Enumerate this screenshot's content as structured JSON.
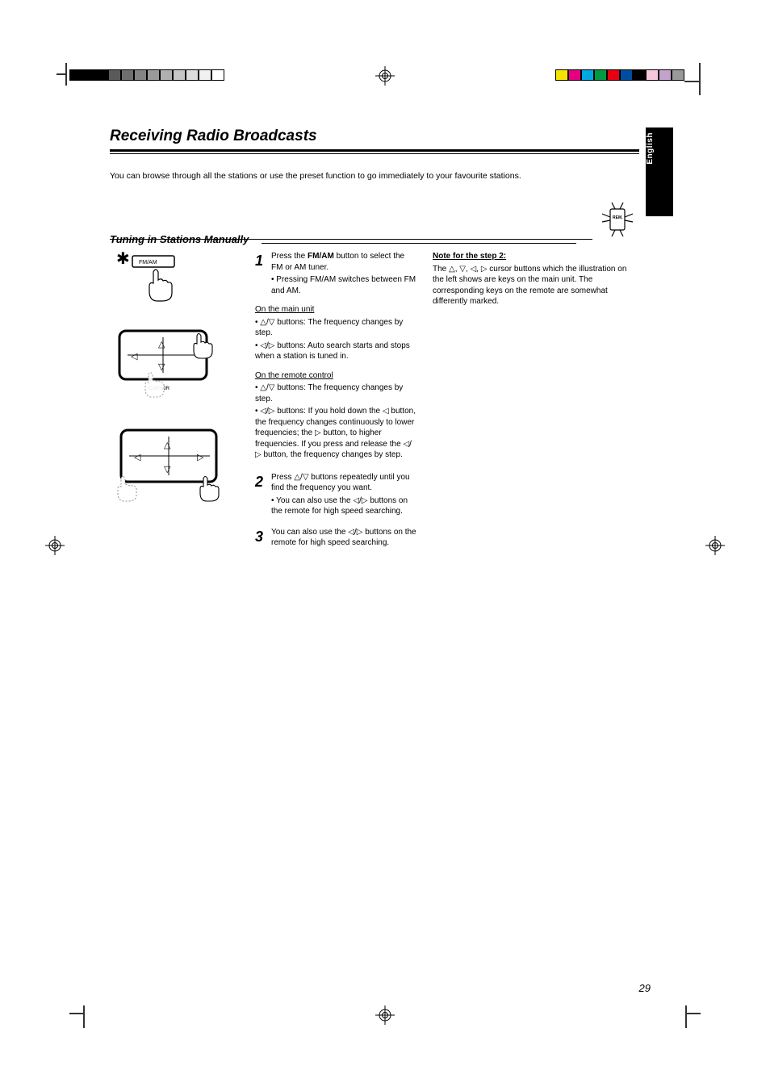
{
  "regmarks": {
    "left_colors": [
      "#000000",
      "#000000",
      "#000000",
      "#5a5a5a",
      "#6f6f6f",
      "#848484",
      "#9a9a9a",
      "#b0b0b0",
      "#c6c6c6",
      "#dcdcdc",
      "#f1f1f1",
      "#ffffff"
    ],
    "left_border": "#000000",
    "right_colors": [
      "#f5e400",
      "#e4007f",
      "#00a8e1",
      "#009944",
      "#e60012",
      "#004da0",
      "#000000",
      "#f6c6dc",
      "#c5a2cd",
      "#999999"
    ],
    "right_border": "#000000",
    "crosshair_color": "#000000",
    "corner_color": "#333333"
  },
  "page": {
    "chapter_title": "Receiving Radio Broadcasts",
    "side_tab_text": "English",
    "intro": "You can browse through all the stations or use the preset function to go immediately to your favourite stations.",
    "section_title": "Tuning in Stations Manually",
    "remote_label": "REM.",
    "page_number": "29"
  },
  "steps": [
    {
      "num": "1",
      "title_html": "Press the <b>FM/AM</b> button to select the FM or AM tuner.",
      "sub": "• Pressing FM/AM switches between FM and AM."
    },
    {
      "num": "2",
      "title_html": "Press <span class='tri'>△</span>/<span class='tri'>▽</span> buttons repeatedly until you find the frequency you want.",
      "sub": "• You can also use the <span class='tri'>◁</span>/<span class='tri'>▷</span> buttons on the remote for high speed searching."
    },
    {
      "num": "3",
      "title_html": "You can also use the <span class='tri'>◁</span>/<span class='tri'>▷</span> buttons on the remote for high speed searching."
    }
  ],
  "mid": {
    "on_main_unit_label": "On the main unit",
    "main_unit_1_html": "• <span class='tri'>△</span>/<span class='tri'>▽</span> buttons: The frequency changes by step.",
    "main_unit_2_html": "• <span class='tri'>◁</span>/<span class='tri'>▷</span> buttons: Auto search starts and stops when a station is tuned in.",
    "on_remote_label": "On the remote control",
    "remote_1_html": "• <span class='tri'>△</span>/<span class='tri'>▽</span> buttons: The frequency changes by step.",
    "remote_2_html": "• <span class='tri'>◁</span>/<span class='tri'>▷</span> buttons: If you hold down the <span class='tri'>◁</span> button, the frequency changes continuously to lower frequencies; the <span class='tri'>▷</span> button, to higher frequencies. If you press and release the <span class='tri'>◁</span>/<span class='tri'>▷</span> button, the frequency changes by step."
  },
  "note": {
    "head": "Note for the step 2:",
    "body_html": "The <span class='tri'>△</span>, <span class='tri'>▽</span>, <span class='tri'>◁</span>, <span class='tri'>▷</span> cursor buttons which the illustration on the left shows are keys on the main unit. The corresponding keys on the remote are somewhat differently marked."
  },
  "illus": {
    "fmam_label": "FM/AM",
    "cursor_label": "CURSOR",
    "colors": {
      "panel_stroke": "#000000",
      "panel_fill": "#ffffff",
      "shadow": "#c8c8c8",
      "hand_fill": "#ffffff",
      "hand_stroke": "#000000",
      "dotted": "#9a9a9a",
      "snowflake": "#000000"
    },
    "stroke_width": 1.2
  }
}
